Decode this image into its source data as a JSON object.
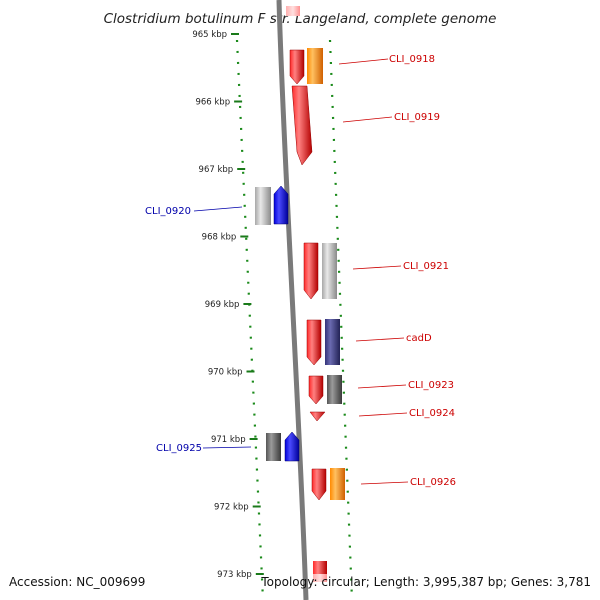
{
  "title": "Clostridium botulinum F str. Langeland, complete genome",
  "footer": {
    "accession": "Accession: NC_009699",
    "summary": "Topology: circular; Length: 3,995,387 bp; Genes: 3,781"
  },
  "ticks": [
    "965 kbp",
    "966 kbp",
    "967 kbp",
    "968 kbp",
    "969 kbp",
    "970 kbp",
    "971 kbp",
    "972 kbp",
    "973 kbp"
  ],
  "genes": [
    {
      "label": "CLI_0918",
      "color": "#cc0000"
    },
    {
      "label": "CLI_0919",
      "color": "#cc0000"
    },
    {
      "label": "CLI_0920",
      "color": "#0000aa"
    },
    {
      "label": "CLI_0921",
      "color": "#cc0000"
    },
    {
      "label": "cadD",
      "color": "#cc0000"
    },
    {
      "label": "CLI_0923",
      "color": "#cc0000"
    },
    {
      "label": "CLI_0924",
      "color": "#cc0000"
    },
    {
      "label": "CLI_0925",
      "color": "#0000aa"
    },
    {
      "label": "CLI_0926",
      "color": "#cc0000"
    }
  ]
}
